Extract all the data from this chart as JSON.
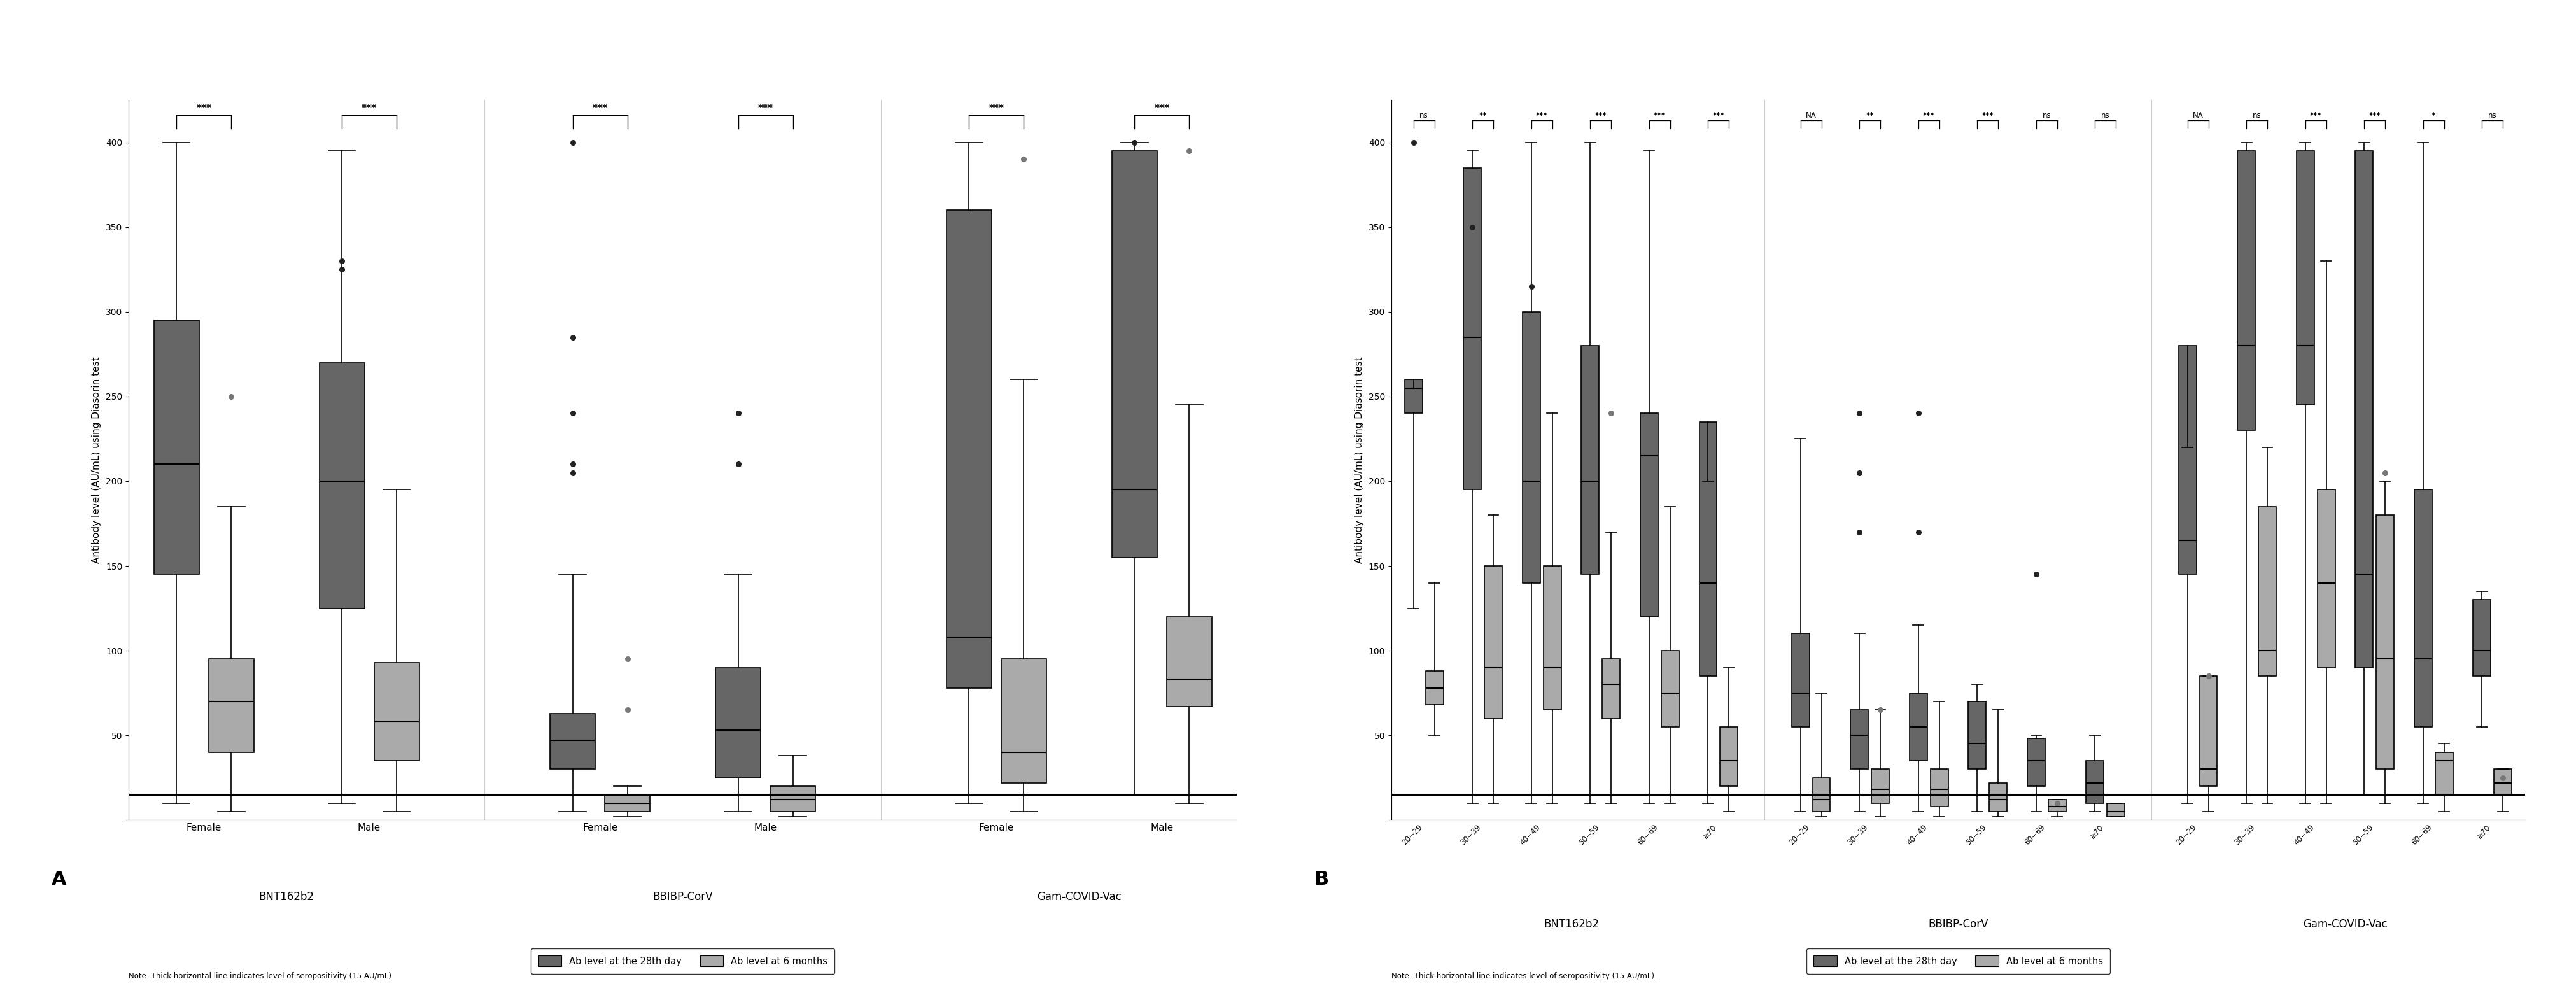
{
  "panel_A": {
    "ylabel": "Antibody level (AU/mL) using Diasorin test",
    "ylim": [
      0,
      420
    ],
    "yticks": [
      0,
      50,
      100,
      150,
      200,
      250,
      300,
      350,
      400
    ],
    "yticklabels": [
      "",
      "50",
      "100",
      "150",
      "200",
      "250",
      "300",
      "350",
      "400"
    ],
    "hline_y": 15,
    "groups": [
      {
        "label": "Female",
        "vaccine": "BNT162b2",
        "day28": {
          "q1": 145,
          "median": 210,
          "q3": 295,
          "whislo": 10,
          "whishi": 400,
          "fliers": []
        },
        "mo6": {
          "q1": 40,
          "median": 70,
          "q3": 95,
          "whislo": 5,
          "whishi": 185,
          "fliers": [
            250
          ]
        }
      },
      {
        "label": "Male",
        "vaccine": "BNT162b2",
        "day28": {
          "q1": 125,
          "median": 200,
          "q3": 270,
          "whislo": 10,
          "whishi": 395,
          "fliers": [
            325,
            330
          ]
        },
        "mo6": {
          "q1": 35,
          "median": 58,
          "q3": 93,
          "whislo": 5,
          "whishi": 195,
          "fliers": []
        }
      },
      {
        "label": "Female",
        "vaccine": "BBIBP-CorV",
        "day28": {
          "q1": 30,
          "median": 47,
          "q3": 63,
          "whislo": 5,
          "whishi": 145,
          "fliers": [
            205,
            210,
            240,
            285,
            400
          ]
        },
        "mo6": {
          "q1": 5,
          "median": 10,
          "q3": 15,
          "whislo": 2,
          "whishi": 20,
          "fliers": [
            65,
            95
          ]
        }
      },
      {
        "label": "Male",
        "vaccine": "BBIBP-CorV",
        "day28": {
          "q1": 25,
          "median": 53,
          "q3": 90,
          "whislo": 5,
          "whishi": 145,
          "fliers": [
            210,
            240
          ]
        },
        "mo6": {
          "q1": 5,
          "median": 12,
          "q3": 20,
          "whislo": 2,
          "whishi": 38,
          "fliers": []
        }
      },
      {
        "label": "Female",
        "vaccine": "Gam-COVID-Vac",
        "day28": {
          "q1": 78,
          "median": 108,
          "q3": 360,
          "whislo": 10,
          "whishi": 400,
          "fliers": []
        },
        "mo6": {
          "q1": 22,
          "median": 40,
          "q3": 95,
          "whislo": 5,
          "whishi": 260,
          "fliers": [
            390
          ]
        }
      },
      {
        "label": "Male",
        "vaccine": "Gam-COVID-Vac",
        "day28": {
          "q1": 155,
          "median": 195,
          "q3": 395,
          "whislo": 15,
          "whishi": 400,
          "fliers": [
            400
          ]
        },
        "mo6": {
          "q1": 67,
          "median": 83,
          "q3": 120,
          "whislo": 10,
          "whishi": 245,
          "fliers": [
            395
          ]
        }
      }
    ],
    "sig_labels": [
      "***",
      "***",
      "***",
      "***",
      "***",
      "***"
    ],
    "vaccine_group_labels": [
      "BNT162b2",
      "BBIBP-CorV",
      "Gam-COVID-Vac"
    ],
    "panel_label": "A",
    "note": "Note: Thick horizontal line indicates level of seropositivity (15 AU/mL)"
  },
  "panel_B": {
    "ylabel": "Antibody level (AU/mL) using Diasorin test",
    "ylim": [
      0,
      420
    ],
    "yticks": [
      0,
      50,
      100,
      150,
      200,
      250,
      300,
      350,
      400
    ],
    "yticklabels": [
      "",
      "50",
      "100",
      "150",
      "200",
      "250",
      "300",
      "350",
      "400"
    ],
    "hline_y": 15,
    "groups": [
      {
        "label": "20−29",
        "vaccine": "BNT162b2",
        "day28": {
          "q1": 240,
          "median": 255,
          "q3": 260,
          "whislo": 125,
          "whishi": 255,
          "fliers": [
            400
          ]
        },
        "mo6": {
          "q1": 68,
          "median": 78,
          "q3": 88,
          "whislo": 50,
          "whishi": 140,
          "fliers": []
        }
      },
      {
        "label": "30−39",
        "vaccine": "BNT162b2",
        "day28": {
          "q1": 195,
          "median": 285,
          "q3": 385,
          "whislo": 10,
          "whishi": 395,
          "fliers": [
            350
          ]
        },
        "mo6": {
          "q1": 60,
          "median": 90,
          "q3": 150,
          "whislo": 10,
          "whishi": 180,
          "fliers": []
        }
      },
      {
        "label": "40−49",
        "vaccine": "BNT162b2",
        "day28": {
          "q1": 140,
          "median": 200,
          "q3": 300,
          "whislo": 10,
          "whishi": 400,
          "fliers": [
            315
          ]
        },
        "mo6": {
          "q1": 65,
          "median": 90,
          "q3": 150,
          "whislo": 10,
          "whishi": 240,
          "fliers": []
        }
      },
      {
        "label": "50−59",
        "vaccine": "BNT162b2",
        "day28": {
          "q1": 145,
          "median": 200,
          "q3": 280,
          "whislo": 10,
          "whishi": 400,
          "fliers": []
        },
        "mo6": {
          "q1": 60,
          "median": 80,
          "q3": 95,
          "whislo": 10,
          "whishi": 170,
          "fliers": [
            240
          ]
        }
      },
      {
        "label": "60−69",
        "vaccine": "BNT162b2",
        "day28": {
          "q1": 120,
          "median": 215,
          "q3": 240,
          "whislo": 10,
          "whishi": 395,
          "fliers": []
        },
        "mo6": {
          "q1": 55,
          "median": 75,
          "q3": 100,
          "whislo": 10,
          "whishi": 185,
          "fliers": []
        }
      },
      {
        "label": "≥70",
        "vaccine": "BNT162b2",
        "day28": {
          "q1": 85,
          "median": 140,
          "q3": 235,
          "whislo": 10,
          "whishi": 200,
          "fliers": []
        },
        "mo6": {
          "q1": 20,
          "median": 35,
          "q3": 55,
          "whislo": 5,
          "whishi": 90,
          "fliers": []
        }
      },
      {
        "label": "20−29",
        "vaccine": "BBIBP-CorV",
        "day28": {
          "q1": 55,
          "median": 75,
          "q3": 110,
          "whislo": 5,
          "whishi": 225,
          "fliers": []
        },
        "mo6": {
          "q1": 5,
          "median": 12,
          "q3": 25,
          "whislo": 2,
          "whishi": 75,
          "fliers": []
        }
      },
      {
        "label": "30−39",
        "vaccine": "BBIBP-CorV",
        "day28": {
          "q1": 30,
          "median": 50,
          "q3": 65,
          "whislo": 5,
          "whishi": 110,
          "fliers": [
            170,
            205,
            240
          ]
        },
        "mo6": {
          "q1": 10,
          "median": 18,
          "q3": 30,
          "whislo": 2,
          "whishi": 65,
          "fliers": [
            65
          ]
        }
      },
      {
        "label": "40−49",
        "vaccine": "BBIBP-CorV",
        "day28": {
          "q1": 35,
          "median": 55,
          "q3": 75,
          "whislo": 5,
          "whishi": 115,
          "fliers": [
            170,
            240
          ]
        },
        "mo6": {
          "q1": 8,
          "median": 18,
          "q3": 30,
          "whislo": 2,
          "whishi": 70,
          "fliers": []
        }
      },
      {
        "label": "50−59",
        "vaccine": "BBIBP-CorV",
        "day28": {
          "q1": 30,
          "median": 45,
          "q3": 70,
          "whislo": 5,
          "whishi": 80,
          "fliers": []
        },
        "mo6": {
          "q1": 5,
          "median": 12,
          "q3": 22,
          "whislo": 2,
          "whishi": 65,
          "fliers": []
        }
      },
      {
        "label": "60−69",
        "vaccine": "BBIBP-CorV",
        "day28": {
          "q1": 20,
          "median": 35,
          "q3": 48,
          "whislo": 5,
          "whishi": 50,
          "fliers": [
            145
          ]
        },
        "mo6": {
          "q1": 5,
          "median": 8,
          "q3": 12,
          "whislo": 2,
          "whishi": 12,
          "fliers": [
            10
          ]
        }
      },
      {
        "label": "≥70",
        "vaccine": "BBIBP-CorV",
        "day28": {
          "q1": 10,
          "median": 22,
          "q3": 35,
          "whislo": 5,
          "whishi": 50,
          "fliers": []
        },
        "mo6": {
          "q1": 2,
          "median": 5,
          "q3": 10,
          "whislo": 2,
          "whishi": 10,
          "fliers": []
        }
      },
      {
        "label": "20−29",
        "vaccine": "Gam-COVID-Vac",
        "day28": {
          "q1": 145,
          "median": 165,
          "q3": 280,
          "whislo": 10,
          "whishi": 220,
          "fliers": []
        },
        "mo6": {
          "q1": 20,
          "median": 30,
          "q3": 85,
          "whislo": 5,
          "whishi": 85,
          "fliers": [
            85
          ]
        }
      },
      {
        "label": "30−39",
        "vaccine": "Gam-COVID-Vac",
        "day28": {
          "q1": 230,
          "median": 280,
          "q3": 395,
          "whislo": 10,
          "whishi": 400,
          "fliers": []
        },
        "mo6": {
          "q1": 85,
          "median": 100,
          "q3": 185,
          "whislo": 10,
          "whishi": 220,
          "fliers": []
        }
      },
      {
        "label": "40−49",
        "vaccine": "Gam-COVID-Vac",
        "day28": {
          "q1": 245,
          "median": 280,
          "q3": 395,
          "whislo": 10,
          "whishi": 400,
          "fliers": []
        },
        "mo6": {
          "q1": 90,
          "median": 140,
          "q3": 195,
          "whislo": 10,
          "whishi": 330,
          "fliers": []
        }
      },
      {
        "label": "50−59",
        "vaccine": "Gam-COVID-Vac",
        "day28": {
          "q1": 90,
          "median": 145,
          "q3": 395,
          "whislo": 15,
          "whishi": 400,
          "fliers": []
        },
        "mo6": {
          "q1": 30,
          "median": 95,
          "q3": 180,
          "whislo": 10,
          "whishi": 200,
          "fliers": [
            205
          ]
        }
      },
      {
        "label": "60−69",
        "vaccine": "Gam-COVID-Vac",
        "day28": {
          "q1": 55,
          "median": 95,
          "q3": 195,
          "whislo": 10,
          "whishi": 400,
          "fliers": []
        },
        "mo6": {
          "q1": 15,
          "median": 35,
          "q3": 40,
          "whislo": 5,
          "whishi": 45,
          "fliers": []
        }
      },
      {
        "label": "≥70",
        "vaccine": "Gam-COVID-Vac",
        "day28": {
          "q1": 85,
          "median": 100,
          "q3": 130,
          "whislo": 55,
          "whishi": 135,
          "fliers": []
        },
        "mo6": {
          "q1": 15,
          "median": 22,
          "q3": 30,
          "whislo": 5,
          "whishi": 30,
          "fliers": [
            25
          ]
        }
      }
    ],
    "sig_labels": [
      "ns",
      "**",
      "***",
      "***",
      "***",
      "***",
      "NA",
      "**",
      "***",
      "***",
      "ns",
      "ns",
      "NA",
      "ns",
      "***",
      "***",
      "*",
      "ns"
    ],
    "vaccine_group_labels": [
      "BNT162b2",
      "BBIBP-CorV",
      "Gam-COVID-Vac"
    ],
    "panel_label": "B",
    "note": "Note: Thick horizontal line indicates level of seropositivity (15 AU/mL)."
  },
  "dark_color": "#666666",
  "light_color": "#aaaaaa",
  "flier_dark_color": "#222222",
  "flier_light_color": "#777777",
  "legend_label_dark": "Ab level at the 28th day",
  "legend_label_light": "Ab level at 6 months"
}
